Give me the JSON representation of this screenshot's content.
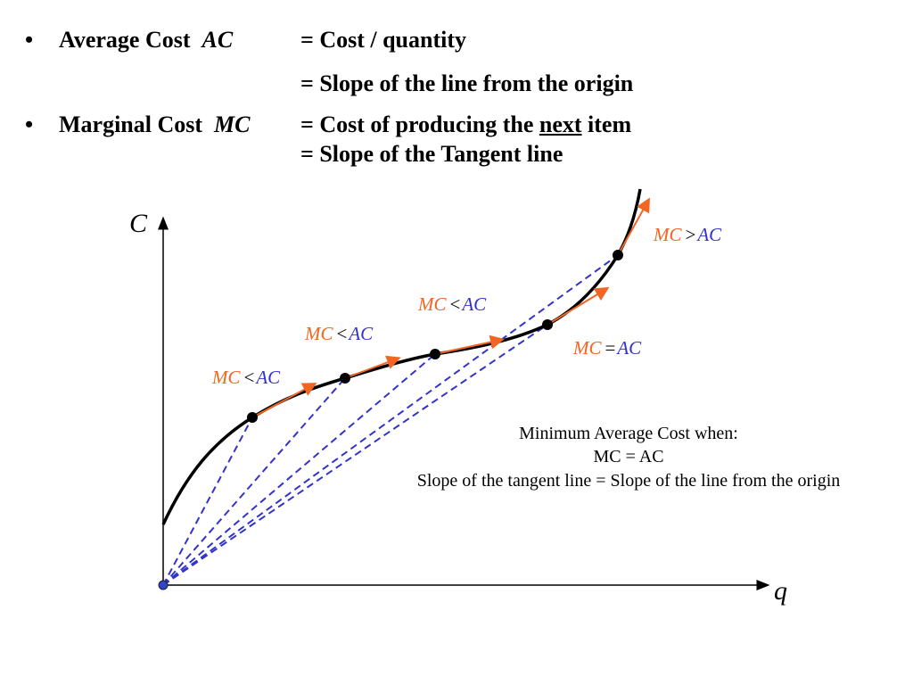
{
  "bullets": [
    {
      "bullet": "•",
      "term": "Average Cost",
      "symbol": "AC",
      "definitions": [
        "= Cost / quantity",
        "= Slope of the line from the origin"
      ]
    },
    {
      "bullet": "•",
      "term": "Marginal Cost",
      "symbol": "MC",
      "definitions_parts": {
        "prefix": "= Cost of producing the ",
        "emphasis": "next",
        "suffix": " item"
      },
      "definition2": "= Slope of the Tangent line"
    }
  ],
  "diagram": {
    "y_axis_label": "C",
    "x_axis_label": "q",
    "labels": [
      {
        "mc": "MC",
        "op": "<",
        "ac": "AC"
      },
      {
        "mc": "MC",
        "op": "<",
        "ac": "AC"
      },
      {
        "mc": "MC",
        "op": "<",
        "ac": "AC"
      },
      {
        "mc": "MC",
        "op": "=",
        "ac": "AC"
      },
      {
        "mc": "MC",
        "op": ">",
        "ac": "AC"
      }
    ],
    "note": [
      "Minimum Average Cost when:",
      "MC = AC",
      "Slope of the tangent line = Slope of the line from the origin"
    ],
    "colors": {
      "mc": "#f26522",
      "ac": "#3333cc",
      "curve": "#000000",
      "dashed": "#3333cc",
      "tangent": "#f26522"
    }
  }
}
